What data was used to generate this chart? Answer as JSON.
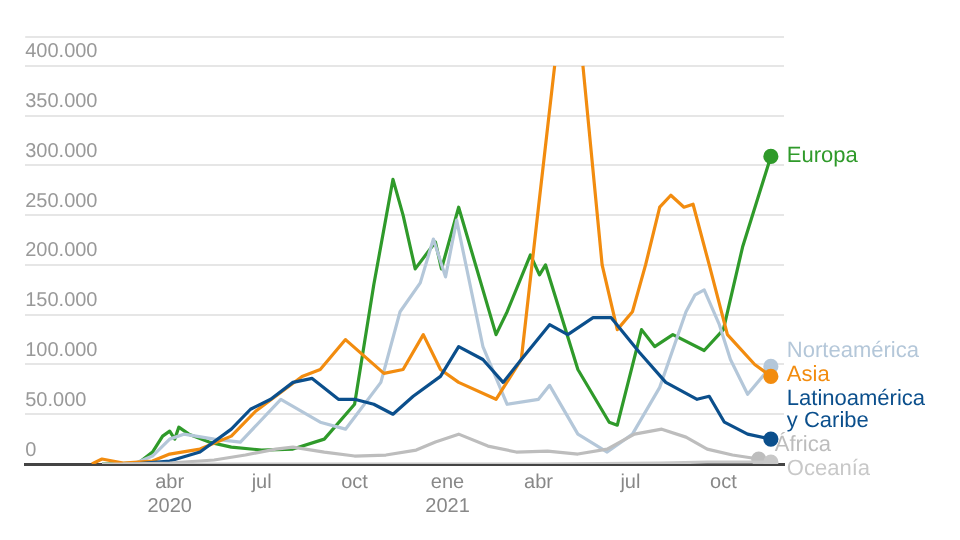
{
  "chart_data": {
    "type": "line",
    "xlim": [
      "2019-11-10",
      "2021-11-30"
    ],
    "xticks": [
      {
        "value": "2020-04-01",
        "label": "abr 2020"
      },
      {
        "value": "2020-07-01",
        "label": "jul"
      },
      {
        "value": "2020-10-01",
        "label": "oct"
      },
      {
        "value": "2021-01-01",
        "label": "ene 2021"
      },
      {
        "value": "2021-04-01",
        "label": "abr"
      },
      {
        "value": "2021-07-01",
        "label": "jul"
      },
      {
        "value": "2021-10-01",
        "label": "oct"
      }
    ],
    "ylim": [
      0,
      430000
    ],
    "yticks": [
      0,
      {
        "value": 50000,
        "label": "50.000"
      },
      {
        "value": 100000,
        "label": "100.000"
      },
      {
        "value": 150000,
        "label": "150.000"
      },
      {
        "value": 200000,
        "label": "200.000"
      },
      {
        "value": 250000,
        "label": "250.000"
      },
      {
        "value": 300000,
        "label": "300.000"
      },
      {
        "value": 350000,
        "label": "350.000"
      },
      {
        "value": 400000,
        "label": "400.000"
      }
    ],
    "grid": "y",
    "series": [
      {
        "name": "Oceanía",
        "color": "#c8c8c8",
        "x": [
          "2020-01-25",
          "2020-04-01",
          "2020-08-01",
          "2020-12-01",
          "2021-04-01",
          "2021-08-01",
          "2021-09-15",
          "2021-11-17"
        ],
        "values": [
          0,
          0,
          0,
          0,
          0,
          1000,
          2000,
          2000
        ]
      },
      {
        "name": "África",
        "color": "#bdbdbd",
        "x": [
          "2020-02-15",
          "2020-04-01",
          "2020-05-15",
          "2020-06-15",
          "2020-07-15",
          "2020-08-01",
          "2020-09-01",
          "2020-10-01",
          "2020-11-01",
          "2020-12-01",
          "2020-12-20",
          "2021-01-12",
          "2021-02-10",
          "2021-03-10",
          "2021-04-10",
          "2021-05-10",
          "2021-06-08",
          "2021-07-05",
          "2021-08-01",
          "2021-08-25",
          "2021-09-15",
          "2021-10-10",
          "2021-11-05"
        ],
        "values": [
          0,
          1000,
          4000,
          9000,
          15000,
          17000,
          12000,
          8000,
          9000,
          14000,
          22000,
          30000,
          18000,
          12000,
          13000,
          10000,
          15000,
          30000,
          35000,
          27000,
          15000,
          9000,
          5000
        ]
      },
      {
        "name": "Latinoamérica y Caribe",
        "color": "#0b4f8c",
        "x": [
          "2020-02-25",
          "2020-04-01",
          "2020-05-01",
          "2020-06-01",
          "2020-06-20",
          "2020-07-10",
          "2020-08-01",
          "2020-08-20",
          "2020-09-15",
          "2020-10-01",
          "2020-10-20",
          "2020-11-08",
          "2020-11-28",
          "2020-12-25",
          "2021-01-12",
          "2021-02-05",
          "2021-02-25",
          "2021-03-15",
          "2021-04-12",
          "2021-04-30",
          "2021-05-25",
          "2021-06-12",
          "2021-07-10",
          "2021-08-05",
          "2021-09-05",
          "2021-09-17",
          "2021-10-02",
          "2021-10-25",
          "2021-11-17"
        ],
        "values": [
          0,
          3000,
          12000,
          35000,
          55000,
          65000,
          82000,
          86000,
          65000,
          65000,
          60000,
          50000,
          68000,
          88000,
          118000,
          105000,
          82000,
          105000,
          140000,
          130000,
          147000,
          147000,
          112000,
          82000,
          65000,
          68000,
          42000,
          30000,
          25000
        ]
      },
      {
        "name": "Asia",
        "color": "#f28c0f",
        "x": [
          "2020-01-15",
          "2020-01-25",
          "2020-02-15",
          "2020-03-15",
          "2020-04-01",
          "2020-05-01",
          "2020-06-01",
          "2020-06-25",
          "2020-08-10",
          "2020-08-28",
          "2020-09-22",
          "2020-10-30",
          "2020-11-18",
          "2020-12-08",
          "2020-12-25",
          "2021-01-12",
          "2021-02-18",
          "2021-03-15",
          "2021-04-01",
          "2021-04-17",
          "2021-05-01",
          "2021-05-15",
          "2021-06-03",
          "2021-06-18",
          "2021-07-03",
          "2021-07-16",
          "2021-07-30",
          "2021-08-10",
          "2021-08-23",
          "2021-09-01",
          "2021-09-17",
          "2021-10-05",
          "2021-11-01",
          "2021-11-17"
        ],
        "values": [
          0,
          5000,
          1000,
          3000,
          10000,
          15000,
          28000,
          53000,
          88000,
          95000,
          125000,
          91000,
          95000,
          130000,
          95000,
          82000,
          65000,
          105000,
          258000,
          400000,
          null,
          400000,
          200000,
          135000,
          153000,
          200000,
          258000,
          270000,
          258000,
          261000,
          200000,
          130000,
          100000,
          88000
        ]
      },
      {
        "name": "Norteamérica",
        "color": "#b4c7d9",
        "x": [
          "2020-02-25",
          "2020-03-15",
          "2020-04-01",
          "2020-04-15",
          "2020-05-15",
          "2020-06-10",
          "2020-07-20",
          "2020-08-28",
          "2020-09-22",
          "2020-10-01",
          "2020-10-27",
          "2020-11-15",
          "2020-12-05",
          "2020-12-18",
          "2020-12-30",
          "2021-01-10",
          "2021-02-05",
          "2021-03-01",
          "2021-04-01",
          "2021-04-12",
          "2021-05-10",
          "2021-06-08",
          "2021-07-03",
          "2021-07-30",
          "2021-08-25",
          "2021-09-03",
          "2021-09-12",
          "2021-09-27",
          "2021-10-08",
          "2021-10-25",
          "2021-11-17"
        ],
        "values": [
          0,
          8000,
          25000,
          30000,
          25000,
          22000,
          65000,
          42000,
          35000,
          47000,
          82000,
          153000,
          182000,
          226000,
          188000,
          245000,
          118000,
          60000,
          65000,
          79000,
          30000,
          12000,
          30000,
          77000,
          153000,
          170000,
          175000,
          140000,
          105000,
          70000,
          98000
        ]
      },
      {
        "name": "Europa",
        "color": "#2f9a2a",
        "x": [
          "2020-01-25",
          "2020-03-01",
          "2020-03-15",
          "2020-03-25",
          "2020-04-01",
          "2020-04-06",
          "2020-04-10",
          "2020-04-20",
          "2020-05-10",
          "2020-06-01",
          "2020-07-01",
          "2020-08-01",
          "2020-09-01",
          "2020-10-01",
          "2020-10-20",
          "2020-11-08",
          "2020-11-18",
          "2020-11-30",
          "2020-12-20",
          "2020-12-26",
          "2021-01-12",
          "2021-02-18",
          "2021-03-01",
          "2021-03-24",
          "2021-04-02",
          "2021-04-08",
          "2021-05-10",
          "2021-06-10",
          "2021-06-18",
          "2021-07-12",
          "2021-07-25",
          "2021-08-12",
          "2021-09-12",
          "2021-10-01",
          "2021-10-20",
          "2021-11-17"
        ],
        "values": [
          0,
          1000,
          12000,
          28000,
          33000,
          25000,
          37000,
          30000,
          22000,
          17000,
          14000,
          15000,
          25000,
          60000,
          180000,
          286000,
          250000,
          196000,
          223000,
          196000,
          258000,
          130000,
          153000,
          210000,
          190000,
          200000,
          95000,
          42000,
          39000,
          135000,
          118000,
          130000,
          114000,
          135000,
          218000,
          309000
        ]
      }
    ]
  }
}
